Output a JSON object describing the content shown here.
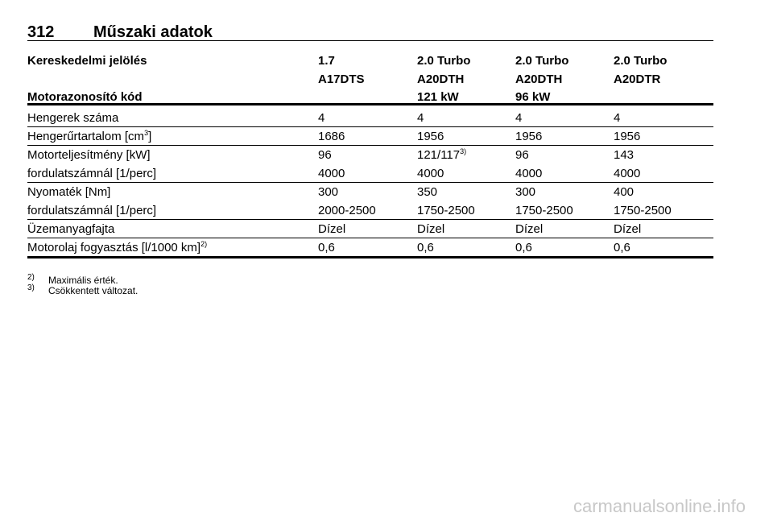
{
  "page": {
    "number": "312",
    "title": "Műszaki adatok"
  },
  "table": {
    "header": [
      [
        "Kereskedelmi jelölés",
        "1.7",
        "2.0 Turbo",
        "2.0 Turbo",
        "2.0 Turbo"
      ],
      [
        null,
        "A17DTS",
        "A20DTH",
        "A20DTH",
        "A20DTR"
      ],
      [
        "Motorazonosító kód",
        null,
        "121 kW",
        "96 kW",
        null
      ]
    ],
    "groups": [
      [
        [
          "Hengerek száma",
          "4",
          "4",
          "4",
          "4"
        ]
      ],
      [
        [
          {
            "text": "Hengerűrtartalom [cm",
            "sup": "3",
            "tail": "]"
          },
          "1686",
          "1956",
          "1956",
          "1956"
        ]
      ],
      [
        [
          "Motorteljesítmény [kW]",
          "96",
          {
            "text": "121/117",
            "sup": "3)"
          },
          "96",
          "143"
        ],
        [
          "fordulatszámnál [1/perc]",
          "4000",
          "4000",
          "4000",
          "4000"
        ]
      ],
      [
        [
          "Nyomaték [Nm]",
          "300",
          "350",
          "300",
          "400"
        ],
        [
          "fordulatszámnál [1/perc]",
          "2000-2500",
          "1750-2500",
          "1750-2500",
          "1750-2500"
        ]
      ],
      [
        [
          "Üzemanyagfajta",
          "Dízel",
          "Dízel",
          "Dízel",
          "Dízel"
        ]
      ],
      [
        [
          {
            "text": "Motorolaj fogyasztás [l/1000 km]",
            "sup": "2)"
          },
          "0,6",
          "0,6",
          "0,6",
          "0,6"
        ]
      ]
    ]
  },
  "footnotes": [
    {
      "mark": "2)",
      "text": "Maximális érték."
    },
    {
      "mark": "3)",
      "text": "Csökkentett változat."
    }
  ],
  "watermark": "carmanualsonline.info"
}
